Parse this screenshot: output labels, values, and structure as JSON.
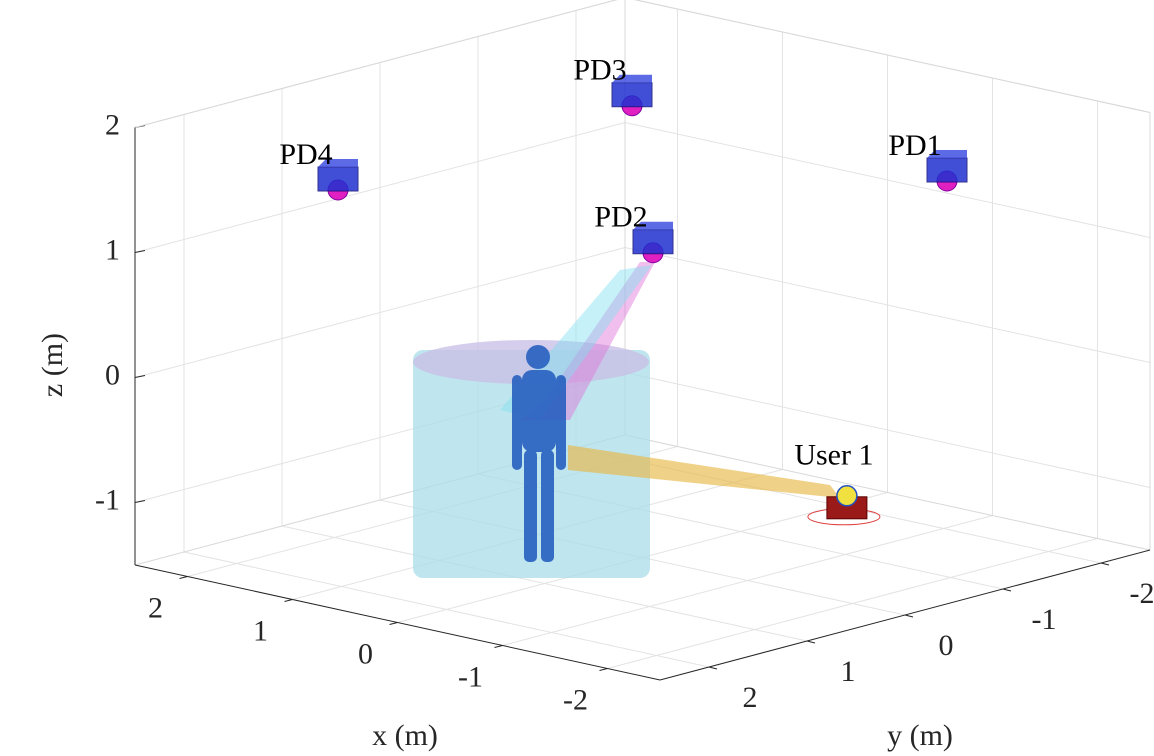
{
  "chart_data": {
    "type": "scatter3d",
    "xlabel": "x (m)",
    "ylabel": "y (m)",
    "zlabel": "z (m)",
    "xlim": [
      -2.5,
      2.5
    ],
    "ylim": [
      -2.5,
      2.5
    ],
    "zlim": [
      -1.5,
      2
    ],
    "xticks": [
      -2,
      -1,
      0,
      1,
      2
    ],
    "yticks": [
      -2,
      -1,
      0,
      1,
      2
    ],
    "zticks": [
      -1,
      0,
      1,
      2
    ],
    "grid": true,
    "points": [
      {
        "label": "PD1",
        "x": -1.5,
        "y": -1.5,
        "z": 1.5,
        "kind": "receiver"
      },
      {
        "label": "PD2",
        "x": -1.5,
        "y": 1.5,
        "z": 1.55,
        "kind": "receiver"
      },
      {
        "label": "PD3",
        "x": 1.5,
        "y": -1.5,
        "z": 1.55,
        "kind": "receiver"
      },
      {
        "label": "PD4",
        "x": 1.5,
        "y": 1.5,
        "z": 1.5,
        "kind": "receiver"
      },
      {
        "label": "User 1",
        "x": -1.2,
        "y": -0.8,
        "z": -1,
        "kind": "user"
      }
    ]
  }
}
